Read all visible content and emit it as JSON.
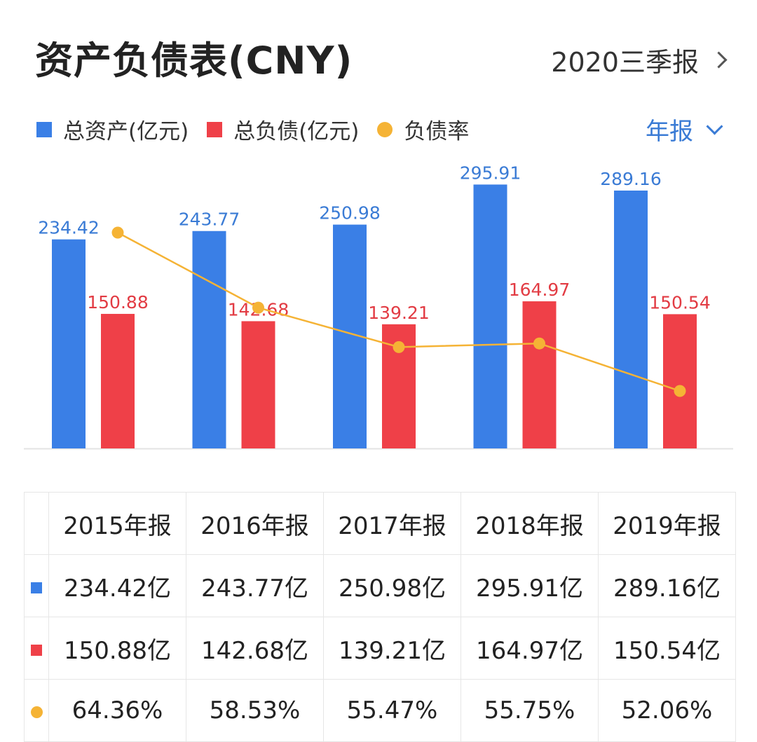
{
  "header": {
    "title": "资产负债表(CNY)",
    "period": "2020三季报"
  },
  "legend": {
    "assets": "总资产(亿元)",
    "liabilities": "总负债(亿元)",
    "ratio": "负债率"
  },
  "report_select": "年报",
  "colors": {
    "assets": "#3a7fe6",
    "liabilities": "#ef4048",
    "ratio": "#f5b335"
  },
  "chart_data": {
    "type": "bar",
    "categories": [
      "2015年报",
      "2016年报",
      "2017年报",
      "2018年报",
      "2019年报"
    ],
    "series": [
      {
        "name": "总资产(亿元)",
        "values": [
          234.42,
          243.77,
          250.98,
          295.91,
          289.16
        ],
        "labels": [
          "234.42",
          "243.77",
          "250.98",
          "295.91",
          "289.16"
        ]
      },
      {
        "name": "总负债(亿元)",
        "values": [
          150.88,
          142.68,
          139.21,
          164.97,
          150.54
        ],
        "labels": [
          "150.88",
          "142.68",
          "139.21",
          "164.97",
          "150.54"
        ]
      },
      {
        "name": "负债率",
        "type": "line",
        "values": [
          64.36,
          58.53,
          55.47,
          55.75,
          52.06
        ]
      }
    ],
    "ylim": [
      0,
      330
    ]
  },
  "table": {
    "headers": [
      "2015年报",
      "2016年报",
      "2017年报",
      "2018年报",
      "2019年报"
    ],
    "rows": [
      {
        "marker": "square",
        "color": "#3a7fe6",
        "cells": [
          "234.42亿",
          "243.77亿",
          "250.98亿",
          "295.91亿",
          "289.16亿"
        ]
      },
      {
        "marker": "square",
        "color": "#ef4048",
        "cells": [
          "150.88亿",
          "142.68亿",
          "139.21亿",
          "164.97亿",
          "150.54亿"
        ]
      },
      {
        "marker": "circle",
        "color": "#f5b335",
        "cells": [
          "64.36%",
          "58.53%",
          "55.47%",
          "55.75%",
          "52.06%"
        ]
      }
    ]
  }
}
